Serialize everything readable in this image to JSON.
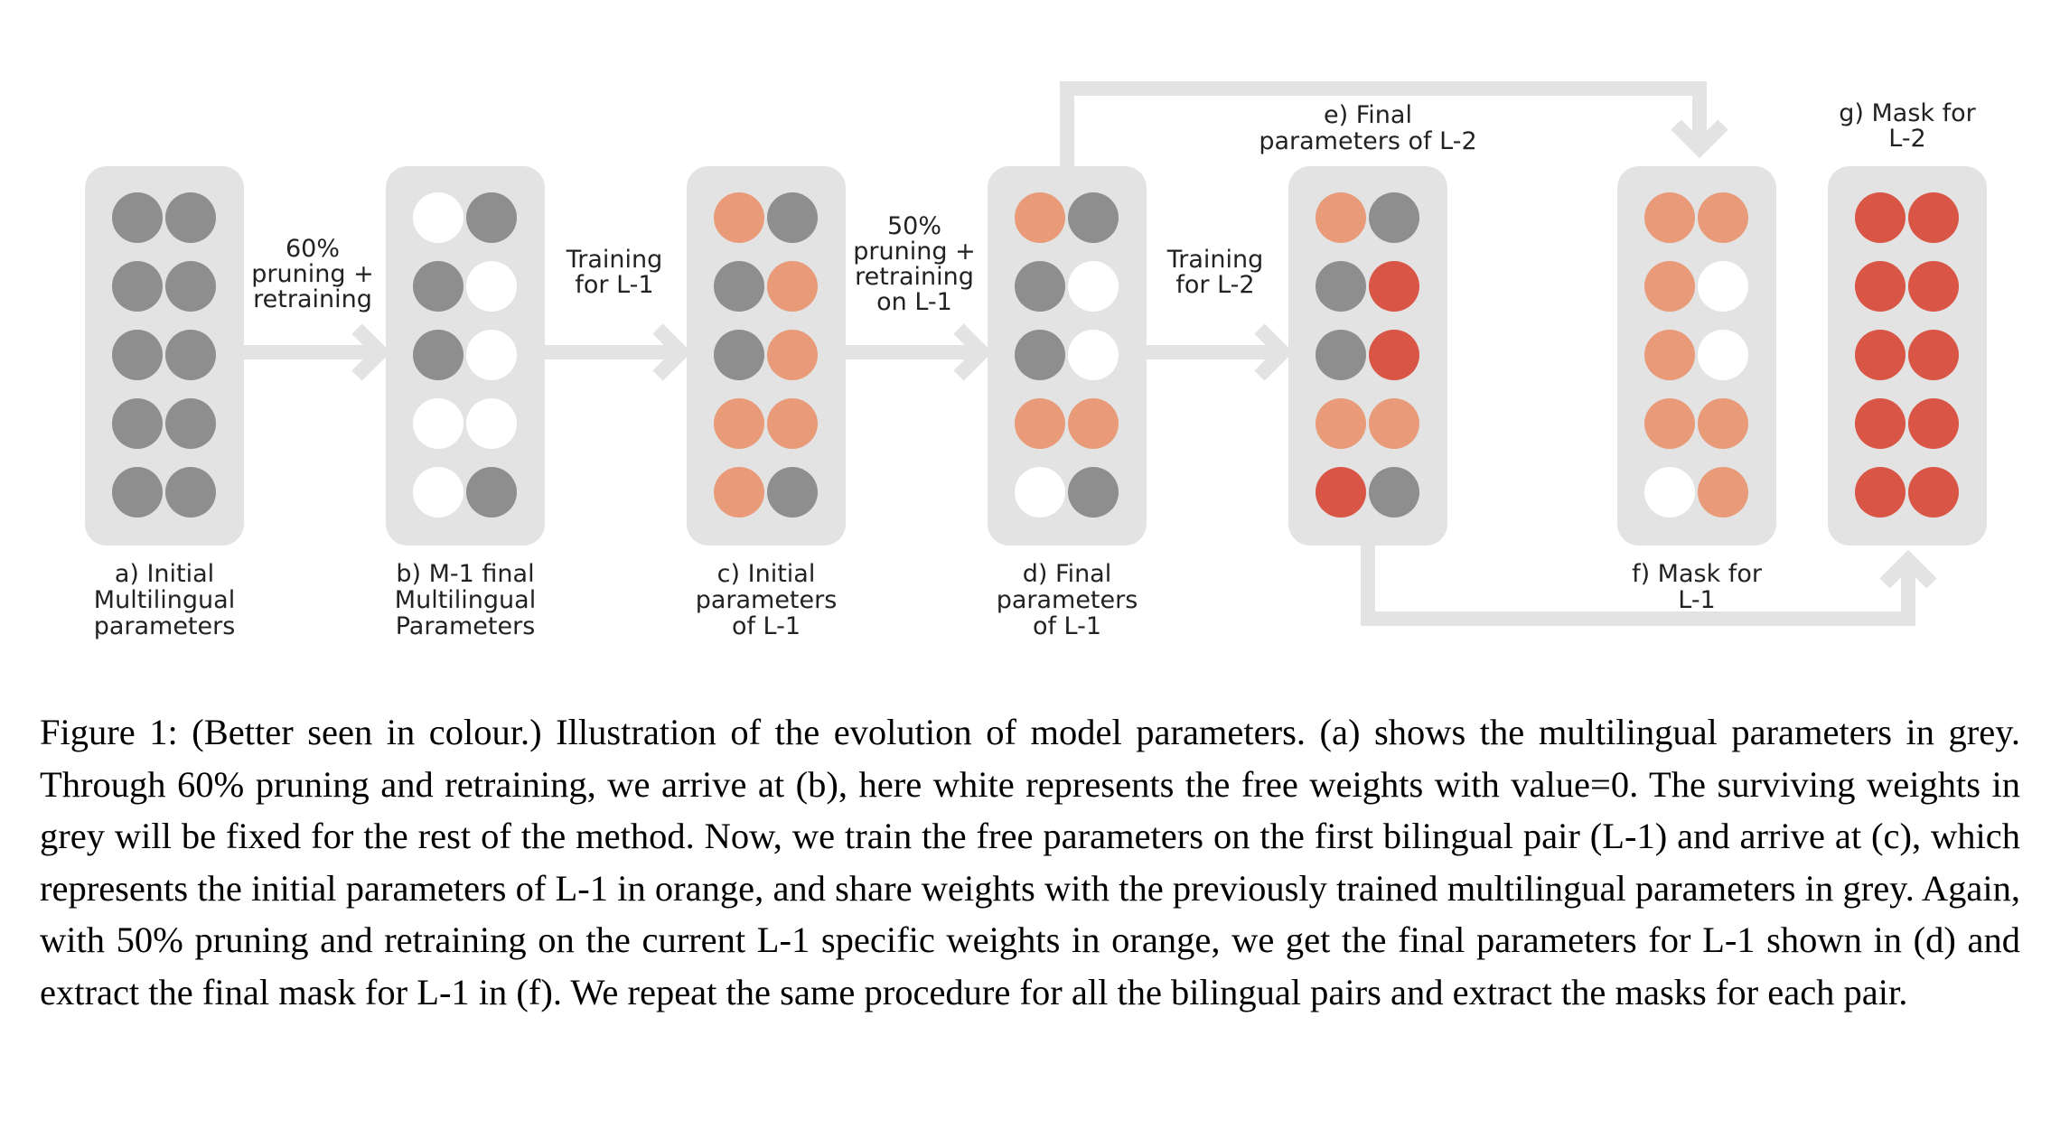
{
  "colors": {
    "panel": "#e3e3e3",
    "grey": "#8e8e8e",
    "free": "#ffffff",
    "orange": "#e99a78",
    "red": "#d95545",
    "arrow": "#e3e3e3"
  },
  "panels": [
    {
      "id": "a",
      "label": [
        "a) Initial",
        "Multilingual",
        "parameters"
      ],
      "cells": [
        "G",
        "G",
        "G",
        "G",
        "G",
        "G",
        "G",
        "G",
        "G",
        "G"
      ]
    },
    {
      "id": "b",
      "label": [
        "b) M-1 final",
        "Multilingual",
        "Parameters"
      ],
      "cells": [
        "W",
        "G",
        "G",
        "W",
        "G",
        "W",
        "W",
        "W",
        "W",
        "G"
      ]
    },
    {
      "id": "c",
      "label": [
        "c) Initial",
        "parameters",
        "of L-1"
      ],
      "cells": [
        "O",
        "G",
        "G",
        "O",
        "G",
        "O",
        "O",
        "O",
        "O",
        "G"
      ]
    },
    {
      "id": "d",
      "label": [
        "d) Final",
        "parameters",
        "of L-1"
      ],
      "cells": [
        "O",
        "G",
        "G",
        "W",
        "G",
        "W",
        "O",
        "O",
        "W",
        "G"
      ]
    },
    {
      "id": "e",
      "label": [
        "e) Final",
        "parameters of L-2"
      ],
      "cells": [
        "O",
        "G",
        "G",
        "R",
        "G",
        "R",
        "O",
        "O",
        "R",
        "G"
      ]
    },
    {
      "id": "f",
      "label": [
        "f) Mask for",
        "L-1"
      ],
      "cells": [
        "O",
        "O",
        "O",
        "W",
        "O",
        "W",
        "O",
        "O",
        "W",
        "O"
      ]
    },
    {
      "id": "g",
      "label": [
        "g) Mask for",
        "L-2"
      ],
      "cells": [
        "R",
        "R",
        "R",
        "R",
        "R",
        "R",
        "R",
        "R",
        "R",
        "R"
      ]
    }
  ],
  "transitions": [
    {
      "from": "a",
      "to": "b",
      "label": [
        "60%",
        "pruning +",
        "retraining"
      ]
    },
    {
      "from": "b",
      "to": "c",
      "label": [
        "Training",
        "for L-1"
      ]
    },
    {
      "from": "c",
      "to": "d",
      "label": [
        "50%",
        "pruning +",
        "retraining",
        "on L-1"
      ]
    },
    {
      "from": "d",
      "to": "e",
      "label": [
        "Training",
        "for L-2"
      ]
    }
  ],
  "caption": "Figure 1: (Better seen in colour.) Illustration of the evolution of model parameters. (a) shows the multilingual parameters in grey. Through 60% pruning and retraining, we arrive at (b), here white represents the free weights with value=0. The surviving weights in grey will be fixed for the rest of the method. Now, we train the free parameters on the first bilingual pair (L-1) and arrive at (c), which represents the initial parameters of L-1 in orange, and share weights with the previously trained multilingual parameters in grey. Again, with 50% pruning and retraining on the current L-1 specific weights in orange, we get the final parameters for L-1 shown in (d) and extract the final mask for L-1 in (f). We repeat the same procedure for all the bilingual pairs and extract the masks for each pair."
}
